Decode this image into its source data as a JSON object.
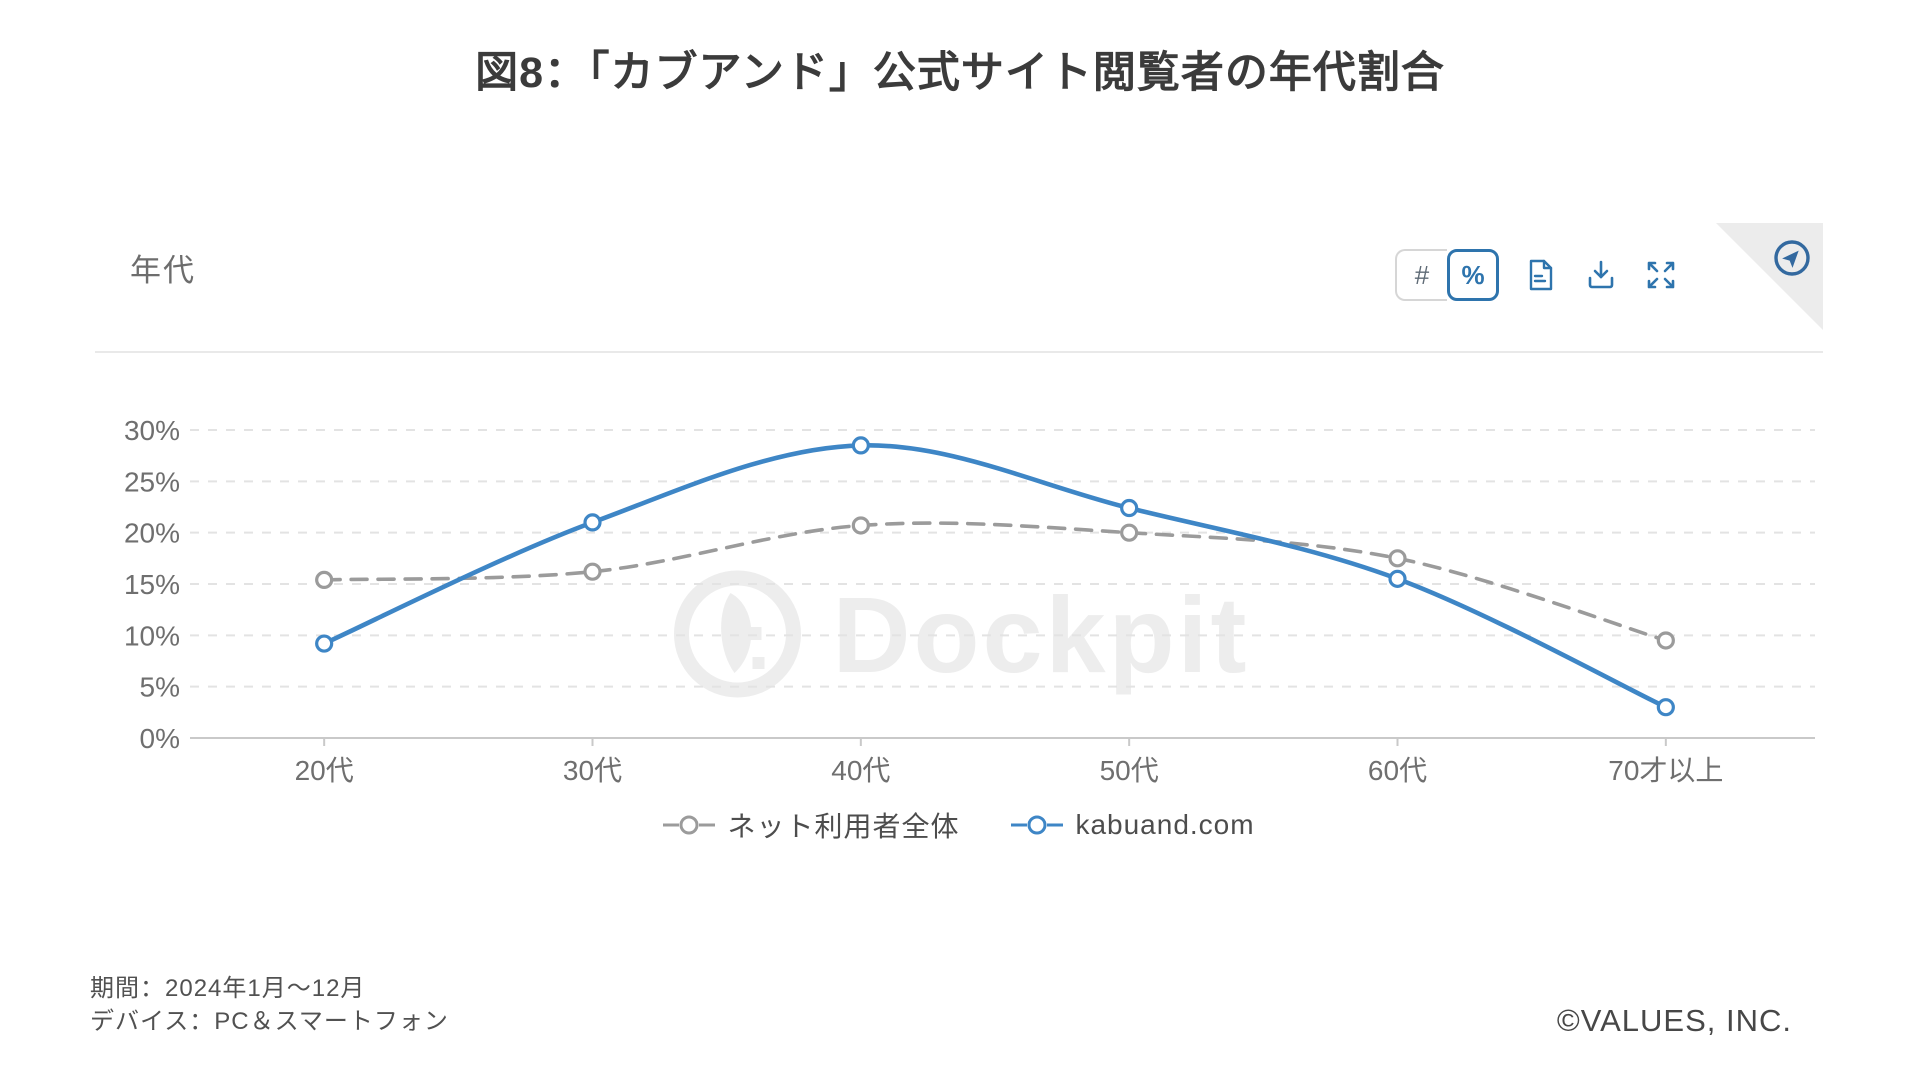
{
  "page": {
    "title": "図8：「カブアンド」公式サイト閲覧者の年代割合",
    "footnote_period": "期間：2024年1月～12月",
    "footnote_device": "デバイス：PC＆スマートフォン",
    "copyright": "©VALUES, INC."
  },
  "panel": {
    "header_label": "年代",
    "toolbar": {
      "count_toggle_label": "#",
      "percent_toggle_label": "%",
      "icons": [
        "report-document-icon",
        "download-icon",
        "expand-icon",
        "navigate-icon"
      ]
    },
    "watermark_text": "Dockpit"
  },
  "chart_data": {
    "type": "line",
    "title": "年代",
    "categories": [
      "20代",
      "30代",
      "40代",
      "50代",
      "60代",
      "70才以上"
    ],
    "series": [
      {
        "name": "ネット利用者全体",
        "color": "#9b9b9b",
        "style": "dashed",
        "values": [
          15.4,
          16.2,
          20.7,
          20.0,
          17.5,
          9.5
        ]
      },
      {
        "name": "kabuand.com",
        "color": "#3e86c6",
        "style": "solid",
        "values": [
          9.2,
          21.0,
          28.5,
          22.4,
          15.5,
          3.0
        ]
      }
    ],
    "ylim": [
      0,
      30
    ],
    "ytick_step": 5,
    "ytick_suffix": "%",
    "grid": "dashed-horizontal",
    "legend_position": "bottom",
    "colors": {
      "accent_blue": "#3e86c6",
      "toolbar_blue": "#2e74ad",
      "series_gray": "#9b9b9b",
      "gridline": "#e3e3e3",
      "axis_line": "#c9c9c9",
      "tick_label": "#6f6f6f"
    }
  }
}
